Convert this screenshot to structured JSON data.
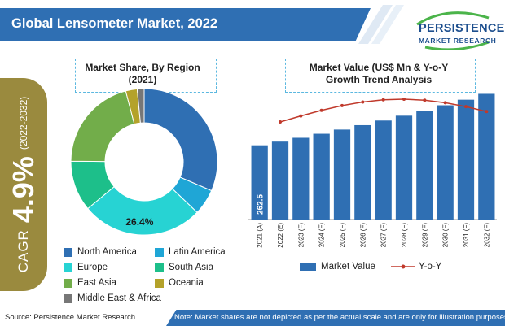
{
  "header": {
    "title": "Global Lensometer Market, 2022",
    "logo_line1": "PERSISTENCE",
    "logo_line2": "MARKET RESEARCH"
  },
  "cagr": {
    "label": "CAGR",
    "value": "4.9%",
    "range": "(2022-2032)"
  },
  "footer": {
    "source": "Source: Persistence Market Research",
    "note": "Note: Market shares are not depicted as per the actual scale and are only for illustration purposes."
  },
  "colors": {
    "accent_blue": "#2f6fb3",
    "cagr_olive": "#9a8a3e",
    "trend_red": "#c0392b"
  },
  "chart_data": [
    {
      "type": "pie",
      "title": "Market Share, By Region (2021)",
      "donut": true,
      "categories": [
        "North America",
        "Latin America",
        "Europe",
        "South Asia",
        "East Asia",
        "Oceania",
        "Middle East & Africa"
      ],
      "values": [
        31.0,
        5.6,
        26.4,
        11.0,
        20.5,
        2.5,
        1.5
      ],
      "colors": [
        "#2f6fb3",
        "#1fa6d6",
        "#27d3d3",
        "#1dbf8a",
        "#72ad4a",
        "#b4a22a",
        "#777777"
      ],
      "data_labels": [
        {
          "category": "Europe",
          "text": "26.4%"
        }
      ],
      "legend_placement": "bottom"
    },
    {
      "type": "bar",
      "title": "Market Value (US$ Mn & Y-o-Y Growth Trend Analysis",
      "categories": [
        "2021 (A)",
        "2022 (E)",
        "2023 (F)",
        "2024 (F)",
        "2025 (F)",
        "2026 (F)",
        "2027 (F)",
        "2028 (F)",
        "2029 (F)",
        "2030 (F)",
        "2031 (F)",
        "2032 (F)"
      ],
      "series": [
        {
          "name": "Market Value",
          "values": [
            262.5,
            275.5,
            289.0,
            303.2,
            318.0,
            333.6,
            350.0,
            367.1,
            385.1,
            403.9,
            423.6,
            444.3
          ],
          "color": "#2f6fb3"
        },
        {
          "name": "Y-o-Y",
          "values": [
            null,
            4.9,
            4.9,
            4.9,
            4.9,
            4.9,
            4.9,
            4.9,
            4.9,
            4.9,
            4.9,
            4.9
          ],
          "color": "#c0392b"
        }
      ],
      "data_labels": [
        {
          "category": "2021 (A)",
          "text": "262.5"
        }
      ],
      "ylim": [
        0,
        460
      ],
      "grid": false,
      "legend_placement": "bottom"
    }
  ]
}
